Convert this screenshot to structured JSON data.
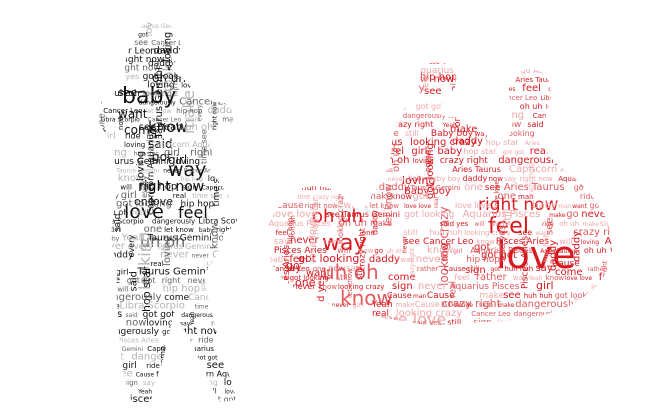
{
  "left_cloud": {
    "color_dark": "#111111",
    "color_mid": "#666666",
    "color_light": "#b5b5b5",
    "words": [
      "love",
      "baby",
      "know",
      "way",
      "right now",
      "feel",
      "oh uh",
      "uh oh",
      "one",
      "see",
      "want",
      "come",
      "said",
      "girl",
      "got",
      "looking",
      "make",
      "now",
      "daddy",
      "love",
      "ride",
      "hop star",
      "man",
      "crazy",
      "will",
      "go",
      "time see",
      "loving",
      "yes",
      "Cause",
      "real",
      "never",
      "say",
      "Jay",
      "hip hop",
      "got got",
      "got looking",
      "Taurus Gemini",
      "Capricorn Aquarius",
      "Pisces Aries",
      "Libra Scorpio",
      "Cancer Leo",
      "Yeah",
      "every",
      "sign",
      "right",
      "let know",
      "dangerously"
    ]
  },
  "right_cloud": {
    "color_dark": "#d71920",
    "color_mid": "#e05a5f",
    "color_light": "#f0a9ab",
    "words": [
      "love",
      "baby",
      "way",
      "feel",
      "right now",
      "oh uh",
      "uh oh",
      "know",
      "love love",
      "looking crazy",
      "got looking",
      "crazy right",
      "loving",
      "Baby boy",
      "hip hop",
      "see",
      "make",
      "daddy",
      "girl",
      "will",
      "every",
      "go",
      "come",
      "want",
      "never",
      "say",
      "one",
      "sign",
      "got got",
      "got",
      "Cause",
      "man",
      "ride",
      "rather",
      "Taurus Gemini",
      "Pisces Aries",
      "Aquarius Pisces",
      "Capricorn Aquarius",
      "Libra Scorpio",
      "Cancer Leo",
      "dangerously love",
      "hop star",
      "Aries Taurus",
      "huh huh",
      "said yes",
      "let know",
      "still",
      "Yeah",
      "real",
      "now"
    ]
  }
}
